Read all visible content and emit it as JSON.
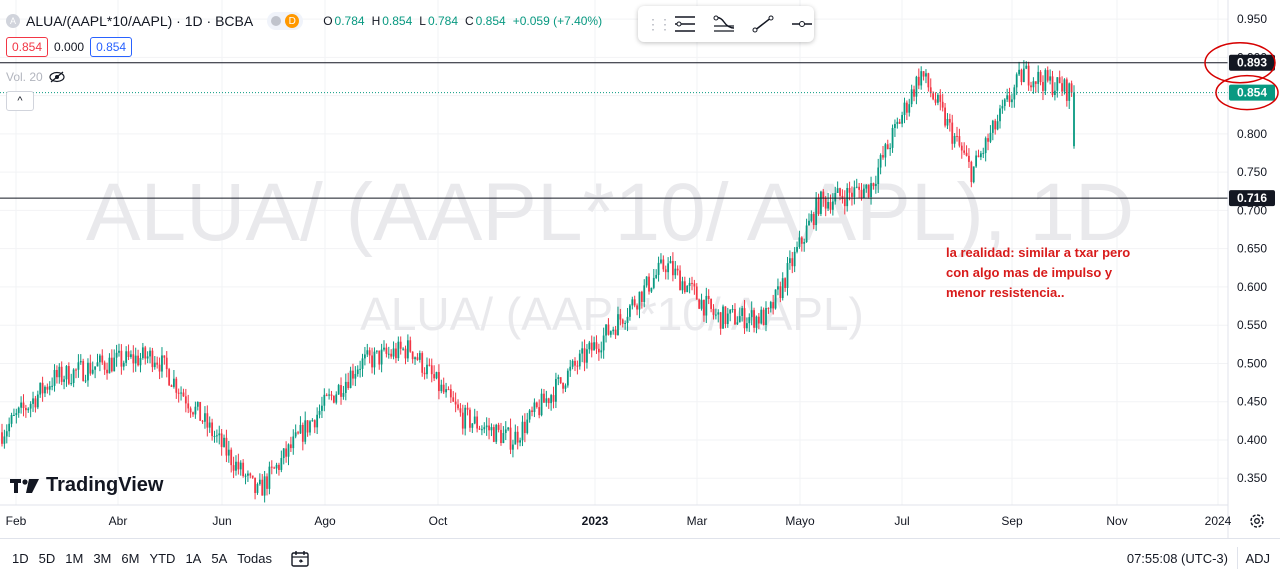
{
  "header": {
    "symbol_title": "ALUA/(AAPL*10/AAPL) · 1D · BCBA",
    "symbol_icon": "A",
    "delay_badge": "D",
    "ohlc": [
      {
        "key": "O",
        "value": "0.784"
      },
      {
        "key": "H",
        "value": "0.854"
      },
      {
        "key": "L",
        "value": "0.784"
      },
      {
        "key": "C",
        "value": "0.854"
      }
    ],
    "change": "+0.059 (+7.40%)"
  },
  "trade_boxes": {
    "sell": "0.854",
    "spread": "0.000",
    "buy": "0.854"
  },
  "volume_label": "Vol. 20",
  "collapse_label": "^",
  "drawing_toolbar": {
    "tools": [
      "horizontal-lines-icon",
      "fib-icon",
      "trend-line-icon",
      "horizontal-ray-icon"
    ]
  },
  "logo_text": "TradingView",
  "bottom_bar": {
    "timeframes": [
      "1D",
      "5D",
      "1M",
      "3M",
      "6M",
      "YTD",
      "1A",
      "5A",
      "Todas"
    ],
    "clock": "07:55:08 (UTC-3)",
    "adj": "ADJ"
  },
  "colors": {
    "up": "#089981",
    "down": "#f23645",
    "annotation": "#d81b1b",
    "axis_text": "#131722",
    "watermark": "#e9e9ec"
  },
  "chart_data": {
    "type": "candlestick",
    "watermark": "ALUA/ (AAPL*10/ AAPL), 1D",
    "watermark_sub": "ALUA/ (AAPL*10/ AAPL)",
    "x_ticks": [
      "Feb",
      "Abr",
      "Jun",
      "Ago",
      "Oct",
      "2023",
      "Mar",
      "Mayo",
      "Jul",
      "Sep",
      "Nov",
      "2024"
    ],
    "y_ticks": [
      "0.950",
      "0.900",
      "0.850",
      "0.800",
      "0.750",
      "0.700",
      "0.650",
      "0.600",
      "0.550",
      "0.500",
      "0.450",
      "0.400",
      "0.350"
    ],
    "ylim": [
      0.315,
      0.975
    ],
    "last_price": 0.854,
    "last_price_label": "0.854",
    "horizontal_lines": [
      {
        "value": 0.893,
        "label": "0.893"
      },
      {
        "value": 0.716,
        "label": "0.716"
      }
    ],
    "annotation": [
      "la realidad: similar a txar pero",
      "con algo mas de impulso y",
      "menor resistencia.."
    ],
    "close_series": [
      {
        "period": "Ene 2022",
        "value": 0.41
      },
      {
        "period": "Feb 2022",
        "value": 0.48
      },
      {
        "period": "Mar 2022",
        "value": 0.5
      },
      {
        "period": "Abr 2022",
        "value": 0.51
      },
      {
        "period": "May 2022",
        "value": 0.42
      },
      {
        "period": "Jun 2022",
        "value": 0.33
      },
      {
        "period": "Jul 2022",
        "value": 0.42
      },
      {
        "period": "Ago 2022",
        "value": 0.5
      },
      {
        "period": "Sep 2022",
        "value": 0.52
      },
      {
        "period": "Oct 2022",
        "value": 0.43
      },
      {
        "period": "Nov 2022",
        "value": 0.4
      },
      {
        "period": "Dic 2022",
        "value": 0.48
      },
      {
        "period": "Ene 2023",
        "value": 0.55
      },
      {
        "period": "Feb 2023",
        "value": 0.63
      },
      {
        "period": "Mar 2023",
        "value": 0.56
      },
      {
        "period": "Abr 2023",
        "value": 0.56
      },
      {
        "period": "May 2023",
        "value": 0.71
      },
      {
        "period": "Jun 2023",
        "value": 0.73
      },
      {
        "period": "Jul 2023",
        "value": 0.88
      },
      {
        "period": "Ago 2023",
        "value": 0.75
      },
      {
        "period": "Sep 2023",
        "value": 0.88
      },
      {
        "period": "Oct 2023",
        "value": 0.854
      }
    ]
  }
}
